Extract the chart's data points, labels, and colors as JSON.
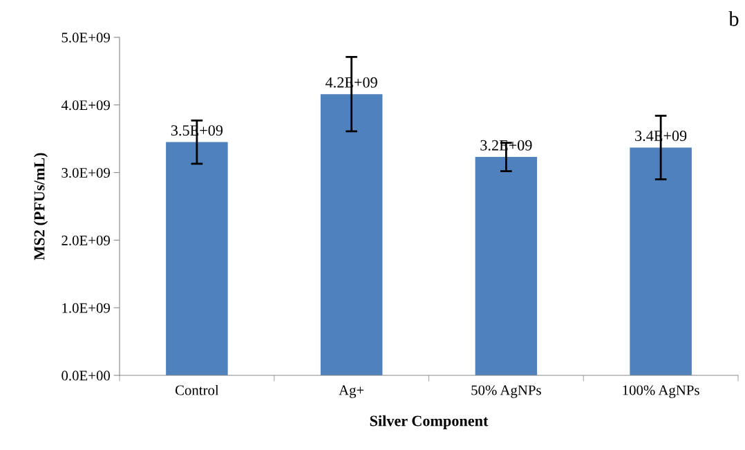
{
  "chart_data": {
    "type": "bar",
    "categories": [
      "Control",
      "Ag+",
      "50% AgNPs",
      "100% AgNPs"
    ],
    "values": [
      3450000000.0,
      4160000000.0,
      3230000000.0,
      3370000000.0
    ],
    "errors": [
      320000000.0,
      550000000.0,
      210000000.0,
      470000000.0
    ],
    "value_labels": [
      "3.5E+09",
      "4.2E+09",
      "3.2E+09",
      "3.4E+09"
    ],
    "color": "#4f81bd",
    "xlabel": "Silver Component",
    "ylabel": "MS2 (PFUs/mL)",
    "ylim": [
      0,
      5000000000.0
    ],
    "yticks": [
      {
        "value": 0,
        "label": "0.0E+00"
      },
      {
        "value": 1000000000.0,
        "label": "1.0E+09"
      },
      {
        "value": 2000000000.0,
        "label": "2.0E+09"
      },
      {
        "value": 3000000000.0,
        "label": "3.0E+09"
      },
      {
        "value": 4000000000.0,
        "label": "4.0E+09"
      },
      {
        "value": 5000000000.0,
        "label": "5.0E+09"
      }
    ],
    "annotations": [
      "b"
    ],
    "grid": false,
    "legend": false
  }
}
